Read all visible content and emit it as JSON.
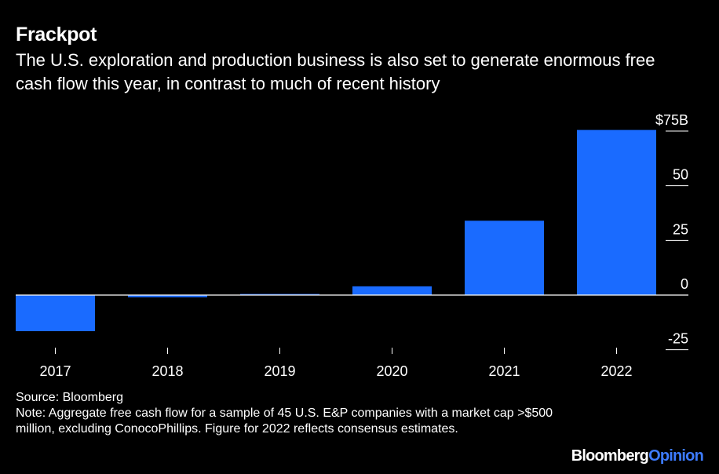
{
  "header": {
    "title": "Frackpot",
    "subtitle": "The U.S. exploration and production business is also set to generate enormous free cash flow this year, in contrast to much of recent history"
  },
  "chart_data": {
    "type": "bar",
    "categories": [
      "2017",
      "2018",
      "2019",
      "2020",
      "2021",
      "2022"
    ],
    "values": [
      -16.5,
      -1,
      0.5,
      4,
      34,
      75.5
    ],
    "ylim": [
      -25,
      75
    ],
    "y_ticks": [
      75,
      50,
      25,
      0,
      -25
    ],
    "y_tick_labels": [
      "$75B",
      "50",
      "25",
      "0",
      "-25"
    ],
    "xlabel": "",
    "ylabel": "",
    "bar_color": "#1a6bff",
    "grid": false
  },
  "footer": {
    "source": "Source: Bloomberg",
    "note": "Note: Aggregate free cash flow for a sample of 45 U.S. E&P companies with a market cap >$500 million, excluding ConocoPhillips. Figure for 2022 reflects consensus estimates."
  },
  "brand": {
    "name": "Bloomberg",
    "suffix": "Opinion",
    "accent": "#3d7bff"
  }
}
